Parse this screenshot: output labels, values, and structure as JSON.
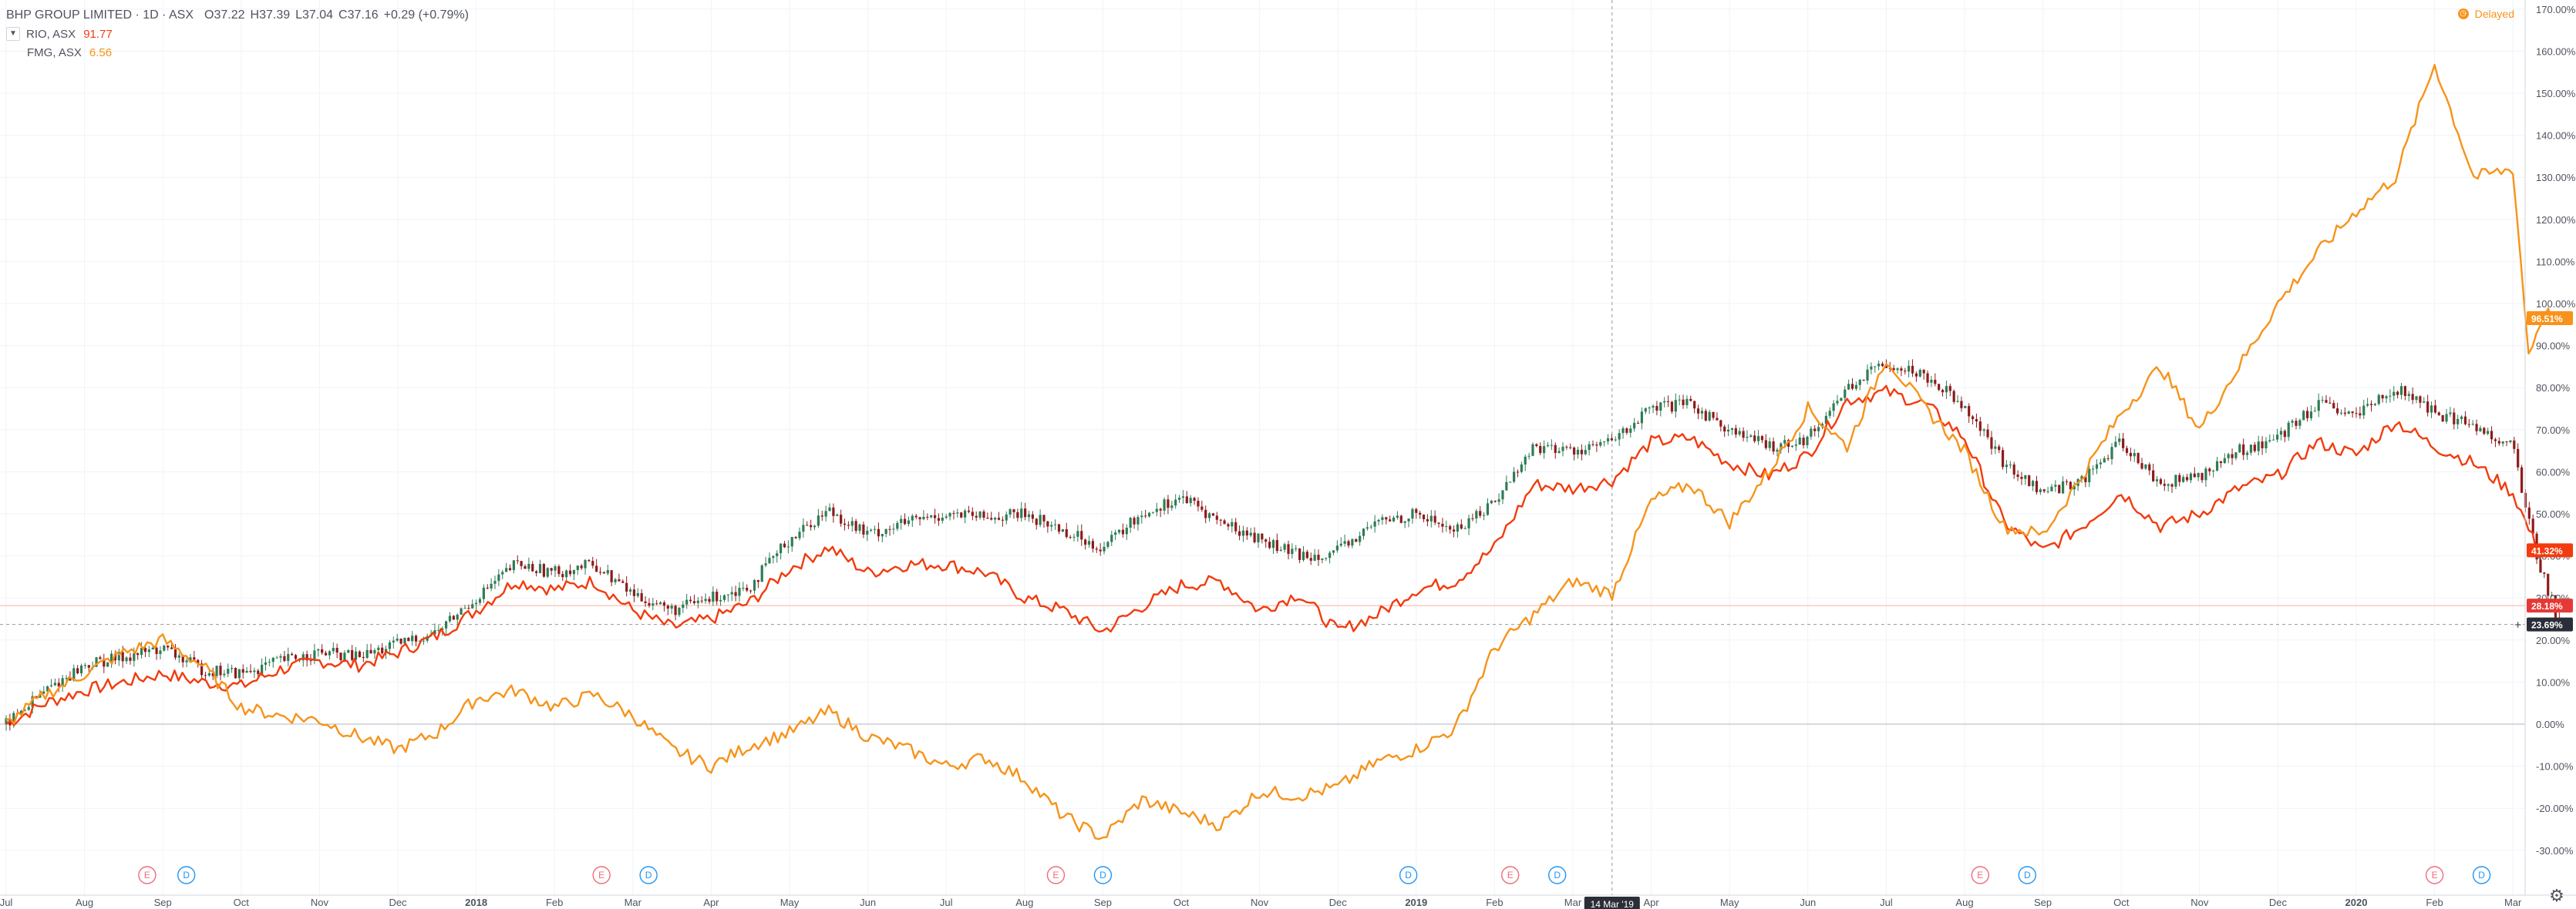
{
  "legend": {
    "title": "BHP GROUP LIMITED · 1D · ASX",
    "open": "O37.22",
    "high": "H37.39",
    "low": "L37.04",
    "close": "C37.16",
    "change": "+0.29 (+0.79%)",
    "rio_label": "RIO, ASX",
    "rio_value": "91.77",
    "fmg_label": "FMG, ASX",
    "fmg_value": "6.56",
    "collapse_icon": "chevron-down-icon"
  },
  "status": {
    "delayed": "Delayed"
  },
  "crosshair_label": "14 Mar '19",
  "colors": {
    "up": "#26a69a",
    "down": "#ef5350",
    "bhp_up": "#2e7d56",
    "bhp_down": "#8e1b1b",
    "rio": "#f23b0e",
    "fmg": "#f7931a",
    "grid": "#f0f3fa",
    "axis_text": "#50535e",
    "earnings": "#f06b7a",
    "dividend": "#2196f3"
  },
  "chart_data": {
    "type": "line",
    "title": "BHP GROUP LIMITED · 1D · ASX",
    "y_scale": "percent",
    "ylim": [
      -35,
      170
    ],
    "y_ticks": [
      170,
      160,
      150,
      140,
      130,
      120,
      110,
      100,
      90,
      80,
      70,
      60,
      50,
      40,
      30,
      20,
      10,
      0,
      -10,
      -20,
      -30
    ],
    "x_ticks": [
      "Jul",
      "Aug",
      "Sep",
      "Oct",
      "Nov",
      "Dec",
      "2018",
      "Feb",
      "Mar",
      "Apr",
      "May",
      "Jun",
      "Jul",
      "Aug",
      "Sep",
      "Oct",
      "Nov",
      "Dec",
      "2019",
      "Feb",
      "Mar",
      "Apr",
      "May",
      "Jun",
      "Jul",
      "Aug",
      "Sep",
      "Oct",
      "Nov",
      "Dec",
      "2020",
      "Feb",
      "Mar"
    ],
    "x_tick_month_index": [
      0,
      1,
      2,
      3,
      4,
      5,
      6,
      7,
      8,
      9,
      10,
      11,
      12,
      13,
      14,
      15,
      16,
      17,
      18,
      19,
      20,
      21,
      22,
      23,
      24,
      25,
      26,
      27,
      28,
      29,
      30,
      31,
      32
    ],
    "x_month_range": [
      0,
      32.6
    ],
    "series": [
      {
        "name": "BHP",
        "style": "candles",
        "points": [
          [
            0,
            0
          ],
          [
            0.5,
            8
          ],
          [
            1,
            14
          ],
          [
            1.5,
            16
          ],
          [
            2,
            18
          ],
          [
            2.5,
            13
          ],
          [
            3,
            12
          ],
          [
            3.5,
            15
          ],
          [
            4,
            17
          ],
          [
            4.5,
            16
          ],
          [
            5,
            19
          ],
          [
            5.5,
            22
          ],
          [
            6,
            30
          ],
          [
            6.5,
            38
          ],
          [
            7,
            36
          ],
          [
            7.5,
            38
          ],
          [
            8,
            31
          ],
          [
            8.5,
            27
          ],
          [
            9,
            30
          ],
          [
            9.5,
            33
          ],
          [
            10,
            44
          ],
          [
            10.5,
            51
          ],
          [
            11,
            45
          ],
          [
            11.5,
            48
          ],
          [
            12,
            50
          ],
          [
            12.5,
            49
          ],
          [
            13,
            50
          ],
          [
            13.5,
            46
          ],
          [
            14,
            42
          ],
          [
            14.5,
            50
          ],
          [
            15,
            54
          ],
          [
            15.5,
            48
          ],
          [
            16,
            44
          ],
          [
            16.5,
            40
          ],
          [
            17,
            41
          ],
          [
            17.5,
            48
          ],
          [
            18,
            50
          ],
          [
            18.5,
            46
          ],
          [
            19,
            53
          ],
          [
            19.5,
            66
          ],
          [
            20,
            65
          ],
          [
            20.5,
            67
          ],
          [
            21,
            75
          ],
          [
            21.5,
            76
          ],
          [
            22,
            70
          ],
          [
            22.5,
            66
          ],
          [
            23,
            68
          ],
          [
            23.5,
            80
          ],
          [
            24,
            86
          ],
          [
            24.5,
            83
          ],
          [
            25,
            76
          ],
          [
            25.5,
            62
          ],
          [
            26,
            55
          ],
          [
            26.5,
            58
          ],
          [
            27,
            67
          ],
          [
            27.5,
            57
          ],
          [
            28,
            59
          ],
          [
            28.5,
            65
          ],
          [
            29,
            68
          ],
          [
            29.5,
            76
          ],
          [
            30,
            73
          ],
          [
            30.5,
            80
          ],
          [
            31,
            74
          ],
          [
            31.5,
            71
          ],
          [
            32,
            66
          ],
          [
            32.3,
            40
          ],
          [
            32.6,
            23.7
          ]
        ]
      },
      {
        "name": "RIO, ASX",
        "style": "line",
        "points": [
          [
            0,
            0
          ],
          [
            0.5,
            5
          ],
          [
            1,
            8
          ],
          [
            1.5,
            10
          ],
          [
            2,
            12
          ],
          [
            2.5,
            10
          ],
          [
            3,
            9
          ],
          [
            3.5,
            13
          ],
          [
            4,
            15
          ],
          [
            4.5,
            14
          ],
          [
            5,
            17
          ],
          [
            5.5,
            21
          ],
          [
            6,
            27
          ],
          [
            6.5,
            34
          ],
          [
            7,
            32
          ],
          [
            7.5,
            34
          ],
          [
            8,
            27
          ],
          [
            8.5,
            23
          ],
          [
            9,
            25
          ],
          [
            9.5,
            29
          ],
          [
            10,
            37
          ],
          [
            10.5,
            42
          ],
          [
            11,
            36
          ],
          [
            11.5,
            38
          ],
          [
            12,
            38
          ],
          [
            12.5,
            36
          ],
          [
            13,
            30
          ],
          [
            13.5,
            27
          ],
          [
            14,
            22
          ],
          [
            14.5,
            28
          ],
          [
            15,
            33
          ],
          [
            15.5,
            34
          ],
          [
            16,
            27
          ],
          [
            16.5,
            31
          ],
          [
            17,
            22
          ],
          [
            17.5,
            26
          ],
          [
            18,
            32
          ],
          [
            18.5,
            34
          ],
          [
            19,
            42
          ],
          [
            19.5,
            57
          ],
          [
            20,
            56
          ],
          [
            20.5,
            58
          ],
          [
            21,
            67
          ],
          [
            21.5,
            68
          ],
          [
            22,
            62
          ],
          [
            22.5,
            59
          ],
          [
            23,
            64
          ],
          [
            23.5,
            77
          ],
          [
            24,
            79
          ],
          [
            24.5,
            76
          ],
          [
            25,
            68
          ],
          [
            25.5,
            48
          ],
          [
            26,
            41
          ],
          [
            26.5,
            47
          ],
          [
            27,
            55
          ],
          [
            27.5,
            47
          ],
          [
            28,
            50
          ],
          [
            28.5,
            56
          ],
          [
            29,
            59
          ],
          [
            29.5,
            67
          ],
          [
            30,
            64
          ],
          [
            30.5,
            72
          ],
          [
            31,
            66
          ],
          [
            31.5,
            62
          ],
          [
            32,
            55
          ],
          [
            32.3,
            42
          ],
          [
            32.6,
            41
          ]
        ]
      },
      {
        "name": "FMG, ASX",
        "style": "line",
        "points": [
          [
            0,
            0
          ],
          [
            0.5,
            7
          ],
          [
            1,
            12
          ],
          [
            1.5,
            17
          ],
          [
            2,
            20
          ],
          [
            2.5,
            14
          ],
          [
            3,
            4
          ],
          [
            3.5,
            2
          ],
          [
            4,
            1
          ],
          [
            4.5,
            -3
          ],
          [
            5,
            -6
          ],
          [
            5.5,
            -2
          ],
          [
            6,
            6
          ],
          [
            6.5,
            8
          ],
          [
            7,
            4
          ],
          [
            7.5,
            7
          ],
          [
            8,
            2
          ],
          [
            8.5,
            -6
          ],
          [
            9,
            -10
          ],
          [
            9.5,
            -5
          ],
          [
            10,
            -2
          ],
          [
            10.5,
            3
          ],
          [
            11,
            -3
          ],
          [
            11.5,
            -6
          ],
          [
            12,
            -10
          ],
          [
            12.5,
            -8
          ],
          [
            13,
            -13
          ],
          [
            13.5,
            -22
          ],
          [
            14,
            -27
          ],
          [
            14.5,
            -18
          ],
          [
            15,
            -21
          ],
          [
            15.5,
            -24
          ],
          [
            16,
            -16
          ],
          [
            16.5,
            -17
          ],
          [
            17,
            -15
          ],
          [
            17.5,
            -9
          ],
          [
            18,
            -6
          ],
          [
            18.5,
            -1
          ],
          [
            19,
            18
          ],
          [
            19.5,
            26
          ],
          [
            20,
            34
          ],
          [
            20.5,
            31
          ],
          [
            21,
            53
          ],
          [
            21.5,
            57
          ],
          [
            22,
            48
          ],
          [
            22.5,
            60
          ],
          [
            23,
            75
          ],
          [
            23.5,
            66
          ],
          [
            24,
            87
          ],
          [
            24.5,
            75
          ],
          [
            25,
            65
          ],
          [
            25.5,
            47
          ],
          [
            26,
            45
          ],
          [
            26.5,
            59
          ],
          [
            27,
            74
          ],
          [
            27.5,
            85
          ],
          [
            28,
            70
          ],
          [
            28.5,
            85
          ],
          [
            29,
            100
          ],
          [
            29.5,
            112
          ],
          [
            30,
            122
          ],
          [
            30.5,
            130
          ],
          [
            31,
            157
          ],
          [
            31.5,
            130
          ],
          [
            32,
            132
          ],
          [
            32.2,
            88
          ],
          [
            32.4,
            98
          ],
          [
            32.6,
            96.5
          ]
        ]
      }
    ],
    "price_labels": [
      "96.51%",
      "41.32%",
      "28.18%",
      "23.69%"
    ],
    "event_markers": [
      {
        "label": "E",
        "month": 1.8
      },
      {
        "label": "D",
        "month": 2.3
      },
      {
        "label": "E",
        "month": 7.6
      },
      {
        "label": "D",
        "month": 8.2
      },
      {
        "label": "E",
        "month": 13.4
      },
      {
        "label": "D",
        "month": 14.0
      },
      {
        "label": "D",
        "month": 17.9
      },
      {
        "label": "E",
        "month": 19.2
      },
      {
        "label": "D",
        "month": 19.8
      },
      {
        "label": "E",
        "month": 25.2
      },
      {
        "label": "D",
        "month": 25.8
      },
      {
        "label": "E",
        "month": 31.0
      },
      {
        "label": "D",
        "month": 31.6
      }
    ],
    "crosshair_month": 20.5,
    "hline_values": [
      28.18,
      23.69
    ],
    "grid": true,
    "legend_position": "top-left"
  }
}
